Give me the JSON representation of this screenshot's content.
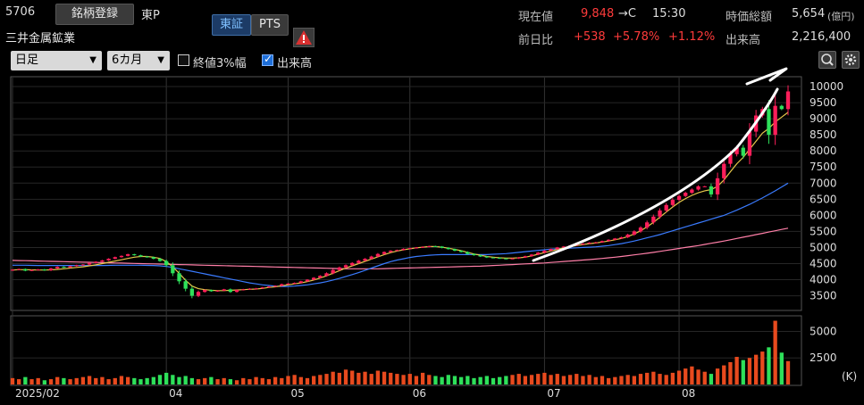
{
  "header": {
    "code": "5706",
    "register_label": "銘柄登録",
    "market": "東P",
    "name": "三井金属鉱業",
    "tab_tse": "東証",
    "tab_pts": "PTS",
    "current_label": "現在値",
    "current_value": "9,848",
    "current_suffix": "→C",
    "current_time": "15:30",
    "mcap_label": "時価総額",
    "mcap_value": "5,654",
    "mcap_unit": "(億円)",
    "change_label": "前日比",
    "change_value": "+538",
    "change_pct": "+5.78%",
    "change_pct2": "+1.12%",
    "volume_label": "出来高",
    "volume_value": "2,216,400"
  },
  "controls": {
    "period": "日足",
    "range": "6カ月",
    "check1_label": "終値3%幅",
    "check2_label": "出来高"
  },
  "colors": {
    "up": "#ff1e5a",
    "down": "#2ee05a",
    "ma_short": "#e6c84a",
    "ma_mid": "#3a7bff",
    "ma_long": "#ff7fa8",
    "vol_up": "#e84a1e",
    "vol_down": "#2ee05a"
  },
  "chart_data": [
    {
      "type": "candlestick",
      "title": "",
      "y_ticks": [
        "10000",
        "9500",
        "9000",
        "8500",
        "8000",
        "7500",
        "7000",
        "6500",
        "6000",
        "5500",
        "5000",
        "4500",
        "4000",
        "3500"
      ],
      "ylim": [
        3100,
        10250
      ],
      "x_tick_labels": [
        "2025/02",
        "04",
        "05",
        "06",
        "07",
        "08"
      ],
      "x_tick_day_index": [
        0,
        24,
        43,
        62,
        83,
        104
      ],
      "n_days": 122,
      "close": [
        4310,
        4330,
        4280,
        4300,
        4320,
        4290,
        4350,
        4400,
        4380,
        4420,
        4450,
        4470,
        4520,
        4560,
        4600,
        4650,
        4700,
        4740,
        4790,
        4760,
        4720,
        4700,
        4650,
        4580,
        4450,
        4200,
        3950,
        3720,
        3500,
        3620,
        3680,
        3640,
        3660,
        3700,
        3620,
        3680,
        3700,
        3720,
        3730,
        3760,
        3790,
        3810,
        3860,
        3880,
        3900,
        3950,
        4000,
        4060,
        4120,
        4200,
        4300,
        4380,
        4450,
        4520,
        4590,
        4650,
        4720,
        4800,
        4860,
        4900,
        4920,
        4960,
        4980,
        5000,
        5020,
        5040,
        5030,
        4990,
        4950,
        4900,
        4860,
        4800,
        4760,
        4720,
        4690,
        4680,
        4660,
        4650,
        4660,
        4690,
        4730,
        4780,
        4840,
        4900,
        4950,
        5000,
        5030,
        5060,
        5090,
        5120,
        5150,
        5160,
        5200,
        5240,
        5280,
        5320,
        5400,
        5500,
        5620,
        5780,
        5960,
        6150,
        6320,
        6480,
        6600,
        6700,
        6800,
        6900,
        6900,
        6650,
        7150,
        7600,
        7900,
        8100,
        7850,
        8600,
        9100,
        9300,
        8500,
        9400,
        9300,
        9848
      ],
      "ma_short": [
        4300,
        4310,
        4310,
        4305,
        4300,
        4300,
        4305,
        4320,
        4340,
        4360,
        4380,
        4400,
        4430,
        4460,
        4500,
        4540,
        4580,
        4620,
        4660,
        4700,
        4720,
        4720,
        4700,
        4660,
        4560,
        4400,
        4200,
        3980,
        3800,
        3720,
        3690,
        3670,
        3660,
        3660,
        3670,
        3680,
        3690,
        3700,
        3710,
        3730,
        3760,
        3780,
        3810,
        3840,
        3870,
        3900,
        3940,
        3990,
        4050,
        4120,
        4200,
        4280,
        4360,
        4430,
        4500,
        4570,
        4640,
        4710,
        4780,
        4840,
        4890,
        4930,
        4960,
        4990,
        5010,
        5030,
        5030,
        5010,
        4980,
        4940,
        4900,
        4850,
        4800,
        4760,
        4720,
        4700,
        4680,
        4670,
        4670,
        4680,
        4700,
        4740,
        4790,
        4840,
        4890,
        4940,
        4990,
        5030,
        5060,
        5090,
        5120,
        5140,
        5170,
        5200,
        5240,
        5280,
        5340,
        5420,
        5520,
        5640,
        5780,
        5940,
        6100,
        6260,
        6400,
        6520,
        6620,
        6700,
        6760,
        6800,
        6900,
        7100,
        7350,
        7600,
        7800,
        8050,
        8300,
        8550,
        8700,
        8900,
        9050,
        9200
      ],
      "ma_mid": [
        4450,
        4450,
        4450,
        4445,
        4440,
        4440,
        4440,
        4440,
        4440,
        4440,
        4440,
        4440,
        4440,
        4440,
        4440,
        4445,
        4450,
        4450,
        4450,
        4450,
        4450,
        4445,
        4440,
        4430,
        4410,
        4380,
        4340,
        4300,
        4260,
        4220,
        4180,
        4140,
        4100,
        4060,
        4020,
        3980,
        3940,
        3900,
        3870,
        3840,
        3820,
        3800,
        3790,
        3790,
        3800,
        3820,
        3840,
        3870,
        3900,
        3940,
        3990,
        4040,
        4100,
        4160,
        4220,
        4290,
        4360,
        4430,
        4500,
        4560,
        4610,
        4650,
        4690,
        4720,
        4740,
        4760,
        4770,
        4780,
        4780,
        4780,
        4780,
        4780,
        4780,
        4780,
        4780,
        4790,
        4800,
        4810,
        4830,
        4850,
        4870,
        4890,
        4910,
        4930,
        4950,
        4960,
        4970,
        4980,
        4990,
        5000,
        5010,
        5020,
        5040,
        5060,
        5090,
        5120,
        5160,
        5200,
        5250,
        5300,
        5350,
        5400,
        5460,
        5520,
        5580,
        5640,
        5700,
        5760,
        5820,
        5880,
        5940,
        6000,
        6080,
        6160,
        6250,
        6340,
        6440,
        6540,
        6650,
        6760,
        6880,
        7000
      ],
      "ma_long": [
        4600,
        4595,
        4590,
        4585,
        4580,
        4575,
        4570,
        4565,
        4560,
        4555,
        4550,
        4545,
        4540,
        4535,
        4530,
        4525,
        4520,
        4515,
        4510,
        4505,
        4500,
        4495,
        4490,
        4485,
        4480,
        4475,
        4470,
        4465,
        4460,
        4455,
        4450,
        4445,
        4440,
        4435,
        4430,
        4425,
        4420,
        4415,
        4410,
        4405,
        4400,
        4395,
        4390,
        4385,
        4380,
        4375,
        4370,
        4365,
        4360,
        4355,
        4350,
        4345,
        4340,
        4340,
        4340,
        4340,
        4340,
        4340,
        4345,
        4350,
        4355,
        4360,
        4365,
        4370,
        4375,
        4380,
        4385,
        4390,
        4395,
        4400,
        4405,
        4410,
        4415,
        4420,
        4430,
        4440,
        4450,
        4460,
        4470,
        4480,
        4490,
        4500,
        4510,
        4520,
        4535,
        4550,
        4565,
        4580,
        4595,
        4610,
        4625,
        4640,
        4660,
        4680,
        4700,
        4720,
        4745,
        4770,
        4795,
        4820,
        4850,
        4880,
        4910,
        4940,
        4970,
        5000,
        5030,
        5060,
        5095,
        5130,
        5165,
        5200,
        5240,
        5280,
        5320,
        5360,
        5400,
        5440,
        5480,
        5520,
        5560,
        5600
      ]
    },
    {
      "type": "bar",
      "title": "",
      "y_ticks": [
        "5000",
        "2500"
      ],
      "y_unit": "(K)",
      "ylim": [
        0,
        6300
      ],
      "volume": [
        600,
        500,
        700,
        500,
        600,
        400,
        500,
        700,
        600,
        500,
        600,
        700,
        800,
        600,
        700,
        500,
        600,
        800,
        700,
        600,
        500,
        600,
        700,
        900,
        1100,
        900,
        700,
        800,
        600,
        500,
        600,
        700,
        500,
        600,
        500,
        400,
        600,
        500,
        700,
        600,
        500,
        700,
        600,
        800,
        900,
        700,
        600,
        800,
        900,
        1000,
        1200,
        1100,
        1400,
        1300,
        1100,
        1200,
        1000,
        1300,
        1200,
        1100,
        1000,
        900,
        1000,
        800,
        1100,
        900,
        800,
        700,
        900,
        800,
        700,
        800,
        600,
        700,
        800,
        600,
        700,
        800,
        900,
        1000,
        800,
        900,
        1000,
        1100,
        900,
        1000,
        800,
        900,
        1000,
        800,
        900,
        700,
        800,
        600,
        700,
        800,
        900,
        800,
        1000,
        1100,
        1200,
        1000,
        900,
        1100,
        1300,
        1500,
        1700,
        1400,
        1200,
        1000,
        1500,
        1800,
        2100,
        2600,
        2300,
        2500,
        2800,
        3100,
        3500,
        6000,
        3000,
        2200
      ]
    }
  ]
}
